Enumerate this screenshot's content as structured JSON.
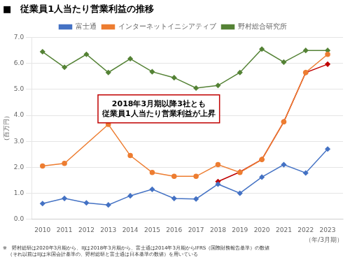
{
  "chart_data": {
    "type": "line",
    "title": "■　従業員1人当たり営業利益の推移",
    "xlabel": "（年/3月期）",
    "ylabel": "（百万円）",
    "x": [
      2010,
      2011,
      2012,
      2013,
      2014,
      2015,
      2016,
      2017,
      2018,
      2019,
      2020,
      2021,
      2022,
      2023
    ],
    "series": [
      {
        "name": "富士通",
        "color": "#4472C4",
        "marker": "diamond",
        "values": [
          0.6,
          0.8,
          0.63,
          0.55,
          0.9,
          1.15,
          0.8,
          0.78,
          1.35,
          1.0,
          1.62,
          2.1,
          1.78,
          2.7
        ]
      },
      {
        "name": "インターネットイニシアティブ",
        "color": "#ED7D31",
        "marker": "circle",
        "values": [
          2.05,
          2.15,
          null,
          3.65,
          2.45,
          1.8,
          1.65,
          1.65,
          2.1,
          1.8,
          2.3,
          3.75,
          5.65,
          6.35
        ]
      },
      {
        "name": "野村総合研究所",
        "color": "#548235",
        "marker": "diamond",
        "values": [
          6.45,
          5.85,
          6.35,
          5.65,
          6.18,
          5.68,
          5.45,
          5.05,
          5.15,
          5.65,
          6.55,
          6.05,
          6.5,
          6.5
        ]
      },
      {
        "color": "#C00000",
        "marker": "diamond",
        "values": [
          null,
          null,
          null,
          null,
          null,
          null,
          null,
          null,
          1.45,
          1.82,
          2.3,
          3.75,
          5.65,
          5.97
        ]
      }
    ],
    "xlim": [
      2009.5,
      2023.7
    ],
    "xticks": [
      2010,
      2011,
      2012,
      2013,
      2014,
      2015,
      2016,
      2017,
      2018,
      2019,
      2020,
      2021,
      2022,
      2023
    ],
    "ylim": [
      0.0,
      7.0
    ],
    "yticks": [
      {
        "value": 0,
        "label": "0.0"
      },
      {
        "value": 1,
        "label": "1.0"
      },
      {
        "value": 2,
        "label": "2.0"
      },
      {
        "value": 3,
        "label": "3.0"
      },
      {
        "value": 4,
        "label": "4.0"
      },
      {
        "value": 5,
        "label": "5.0"
      },
      {
        "value": 6,
        "label": "6.0"
      },
      {
        "value": 7,
        "label": "7.0"
      }
    ],
    "grid": true,
    "legend": "top",
    "annotations": [
      {
        "text": "2018年3月期以降3社とも\n従業員1人当たり営業利益が上昇",
        "x": 2015.3,
        "y": 4.25,
        "color": "#C00000"
      }
    ],
    "footnote": [
      "※　野村総研は2020年3月期から、IIJは2018年3月期から、富士通は2014年3月期からIFRS（国際財務報告基準）の数値",
      "　（それ以前はIIJは米国会計基準の、野村総研と富士通は日本基準の数値）を用いている"
    ]
  }
}
